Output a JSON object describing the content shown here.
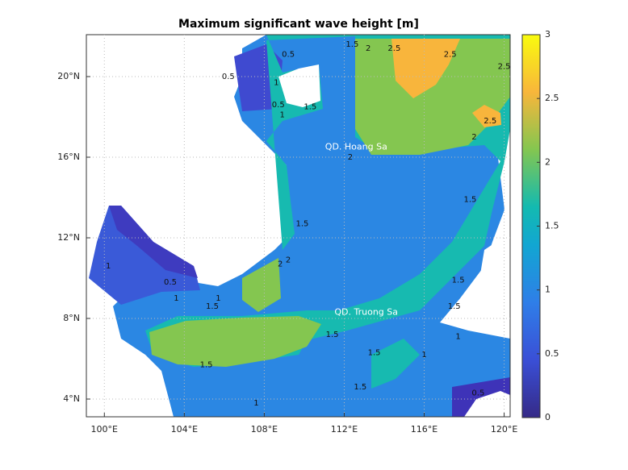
{
  "chart_data": {
    "type": "contour-map",
    "title": "Maximum significant wave height [m]",
    "xlim": [
      99.1,
      120.3
    ],
    "ylim": [
      3.12,
      22.08
    ],
    "xticks": [
      {
        "value": 100,
        "label": "100°E"
      },
      {
        "value": 104,
        "label": "104°E"
      },
      {
        "value": 108,
        "label": "108°E"
      },
      {
        "value": 112,
        "label": "112°E"
      },
      {
        "value": 116,
        "label": "116°E"
      },
      {
        "value": 120,
        "label": "120°E"
      }
    ],
    "yticks": [
      {
        "value": 4,
        "label": "4°N"
      },
      {
        "value": 8,
        "label": "8°N"
      },
      {
        "value": 12,
        "label": "12°N"
      },
      {
        "value": 16,
        "label": "16°N"
      },
      {
        "value": 20,
        "label": "20°N"
      }
    ],
    "grid": true,
    "colorbar": {
      "lim": [
        0,
        3
      ],
      "ticks": [
        0,
        0.5,
        1,
        1.5,
        2,
        2.5,
        3
      ]
    },
    "annotations": [
      {
        "text": "QD. Hoang Sa",
        "x": 112.6,
        "y": 16.5
      },
      {
        "text": "QD. Truong Sa",
        "x": 113.1,
        "y": 8.3
      }
    ],
    "contour_labels": [
      {
        "level": 1.5,
        "x": 112.4,
        "y": 21.6
      },
      {
        "level": 2,
        "x": 113.2,
        "y": 21.4
      },
      {
        "level": 2.5,
        "x": 114.5,
        "y": 21.4
      },
      {
        "level": 2.5,
        "x": 117.3,
        "y": 21.1
      },
      {
        "level": 2.5,
        "x": 120.0,
        "y": 20.5
      },
      {
        "level": 0.5,
        "x": 109.2,
        "y": 21.1
      },
      {
        "level": 0.5,
        "x": 106.2,
        "y": 20.0
      },
      {
        "level": 1,
        "x": 108.6,
        "y": 19.7
      },
      {
        "level": 0.5,
        "x": 108.7,
        "y": 18.6
      },
      {
        "level": 1,
        "x": 108.9,
        "y": 18.1
      },
      {
        "level": 1.5,
        "x": 110.3,
        "y": 18.5
      },
      {
        "level": 2.5,
        "x": 119.3,
        "y": 17.8
      },
      {
        "level": 2,
        "x": 118.5,
        "y": 17.0
      },
      {
        "level": 2,
        "x": 112.3,
        "y": 16.0
      },
      {
        "level": 1.5,
        "x": 118.3,
        "y": 13.9
      },
      {
        "level": 1.5,
        "x": 109.9,
        "y": 12.7
      },
      {
        "level": 2,
        "x": 109.2,
        "y": 10.9
      },
      {
        "level": 2,
        "x": 108.8,
        "y": 10.7
      },
      {
        "level": 1,
        "x": 100.2,
        "y": 10.6
      },
      {
        "level": 0.5,
        "x": 103.3,
        "y": 9.8
      },
      {
        "level": 1,
        "x": 103.6,
        "y": 9.0
      },
      {
        "level": 1,
        "x": 105.7,
        "y": 9.0
      },
      {
        "level": 1.5,
        "x": 105.4,
        "y": 8.6
      },
      {
        "level": 1.5,
        "x": 117.7,
        "y": 9.9
      },
      {
        "level": 1.5,
        "x": 117.5,
        "y": 8.6
      },
      {
        "level": 1.5,
        "x": 111.4,
        "y": 7.2
      },
      {
        "level": 1,
        "x": 117.7,
        "y": 7.1
      },
      {
        "level": 1.5,
        "x": 113.5,
        "y": 6.3
      },
      {
        "level": 1,
        "x": 116.0,
        "y": 6.2
      },
      {
        "level": 1.5,
        "x": 105.1,
        "y": 5.7
      },
      {
        "level": 1.5,
        "x": 112.8,
        "y": 4.6
      },
      {
        "level": 1,
        "x": 107.6,
        "y": 3.8
      },
      {
        "level": 0.5,
        "x": 118.7,
        "y": 4.3
      }
    ]
  }
}
